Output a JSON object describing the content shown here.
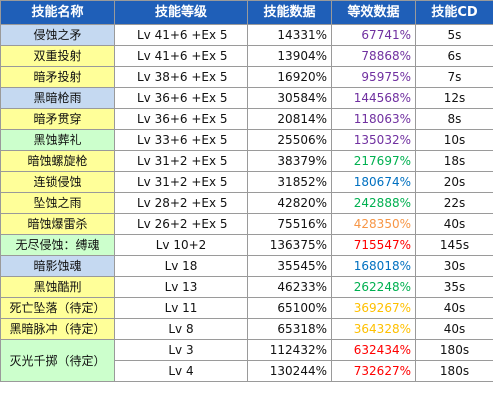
{
  "header": {
    "skill_name": "技能名称",
    "skill_level": "技能等级",
    "skill_data": "技能数据",
    "equiv_data": "等效数据",
    "skill_cd": "技能CD"
  },
  "colors": {
    "header_bg": "#1f5fb8",
    "name_blue": "#c5d9f1",
    "name_yellow": "#ffff99",
    "name_green": "#ccffcc",
    "equiv_purple": "#7030a0",
    "equiv_green": "#00b050",
    "equiv_blue": "#0070c0",
    "equiv_orange": "#f79646",
    "equiv_red": "#ff0000",
    "equiv_gold": "#ffc000"
  },
  "rows": [
    {
      "name": "侵蚀之矛",
      "name_bg": "blue",
      "level": "Lv 41+6 +Ex 5",
      "data": "14331%",
      "equiv": "67741%",
      "equiv_color": "#7030a0",
      "cd": "5s"
    },
    {
      "name": "双重投射",
      "name_bg": "yellow",
      "level": "Lv 41+6 +Ex 5",
      "data": "13904%",
      "equiv": "78868%",
      "equiv_color": "#7030a0",
      "cd": "6s"
    },
    {
      "name": "暗矛投射",
      "name_bg": "yellow",
      "level": "Lv 38+6 +Ex 5",
      "data": "16920%",
      "equiv": "95975%",
      "equiv_color": "#7030a0",
      "cd": "7s"
    },
    {
      "name": "黑暗枪雨",
      "name_bg": "blue",
      "level": "Lv 36+6 +Ex 5",
      "data": "30584%",
      "equiv": "144568%",
      "equiv_color": "#7030a0",
      "cd": "12s"
    },
    {
      "name": "暗矛贯穿",
      "name_bg": "yellow",
      "level": "Lv 36+6 +Ex 5",
      "data": "20814%",
      "equiv": "118063%",
      "equiv_color": "#7030a0",
      "cd": "8s"
    },
    {
      "name": "黑蚀葬礼",
      "name_bg": "green",
      "level": "Lv 33+6 +Ex 5",
      "data": "25506%",
      "equiv": "135032%",
      "equiv_color": "#7030a0",
      "cd": "10s"
    },
    {
      "name": "暗蚀螺旋枪",
      "name_bg": "yellow",
      "level": "Lv 31+2 +Ex 5",
      "data": "38379%",
      "equiv": "217697%",
      "equiv_color": "#00b050",
      "cd": "18s"
    },
    {
      "name": "连锁侵蚀",
      "name_bg": "yellow",
      "level": "Lv 31+2 +Ex 5",
      "data": "31852%",
      "equiv": "180674%",
      "equiv_color": "#0070c0",
      "cd": "20s"
    },
    {
      "name": "坠蚀之雨",
      "name_bg": "yellow",
      "level": "Lv 28+2 +Ex 5",
      "data": "42820%",
      "equiv": "242888%",
      "equiv_color": "#00b050",
      "cd": "22s"
    },
    {
      "name": "暗蚀爆雷杀",
      "name_bg": "yellow",
      "level": "Lv 26+2 +Ex 5",
      "data": "75516%",
      "equiv": "428350%",
      "equiv_color": "#f79646",
      "cd": "40s"
    },
    {
      "name": "无尽侵蚀：缚魂",
      "name_bg": "green",
      "level": "Lv 10+2",
      "data": "136375%",
      "equiv": "715547%",
      "equiv_color": "#ff0000",
      "cd": "145s"
    },
    {
      "name": "暗影蚀魂",
      "name_bg": "blue",
      "level": "Lv 18",
      "data": "35545%",
      "equiv": "168018%",
      "equiv_color": "#0070c0",
      "cd": "30s"
    },
    {
      "name": "黑蚀酷刑",
      "name_bg": "yellow",
      "level": "Lv 13",
      "data": "46233%",
      "equiv": "262248%",
      "equiv_color": "#00b050",
      "cd": "35s"
    },
    {
      "name": "死亡坠落（待定）",
      "name_bg": "yellow",
      "level": "Lv 11",
      "data": "65100%",
      "equiv": "369267%",
      "equiv_color": "#ffc000",
      "cd": "40s"
    },
    {
      "name": "黑暗脉冲（待定）",
      "name_bg": "yellow",
      "level": "Lv 8",
      "data": "65318%",
      "equiv": "364328%",
      "equiv_color": "#ffc000",
      "cd": "40s"
    }
  ],
  "merged_skill": {
    "name": "灭光千掷（待定）",
    "name_bg": "green",
    "rows": [
      {
        "level": "Lv 3",
        "data": "112432%",
        "equiv": "632434%",
        "equiv_color": "#ff0000",
        "cd": "180s"
      },
      {
        "level": "Lv 4",
        "data": "130244%",
        "equiv": "732627%",
        "equiv_color": "#ff0000",
        "cd": "180s"
      }
    ]
  }
}
